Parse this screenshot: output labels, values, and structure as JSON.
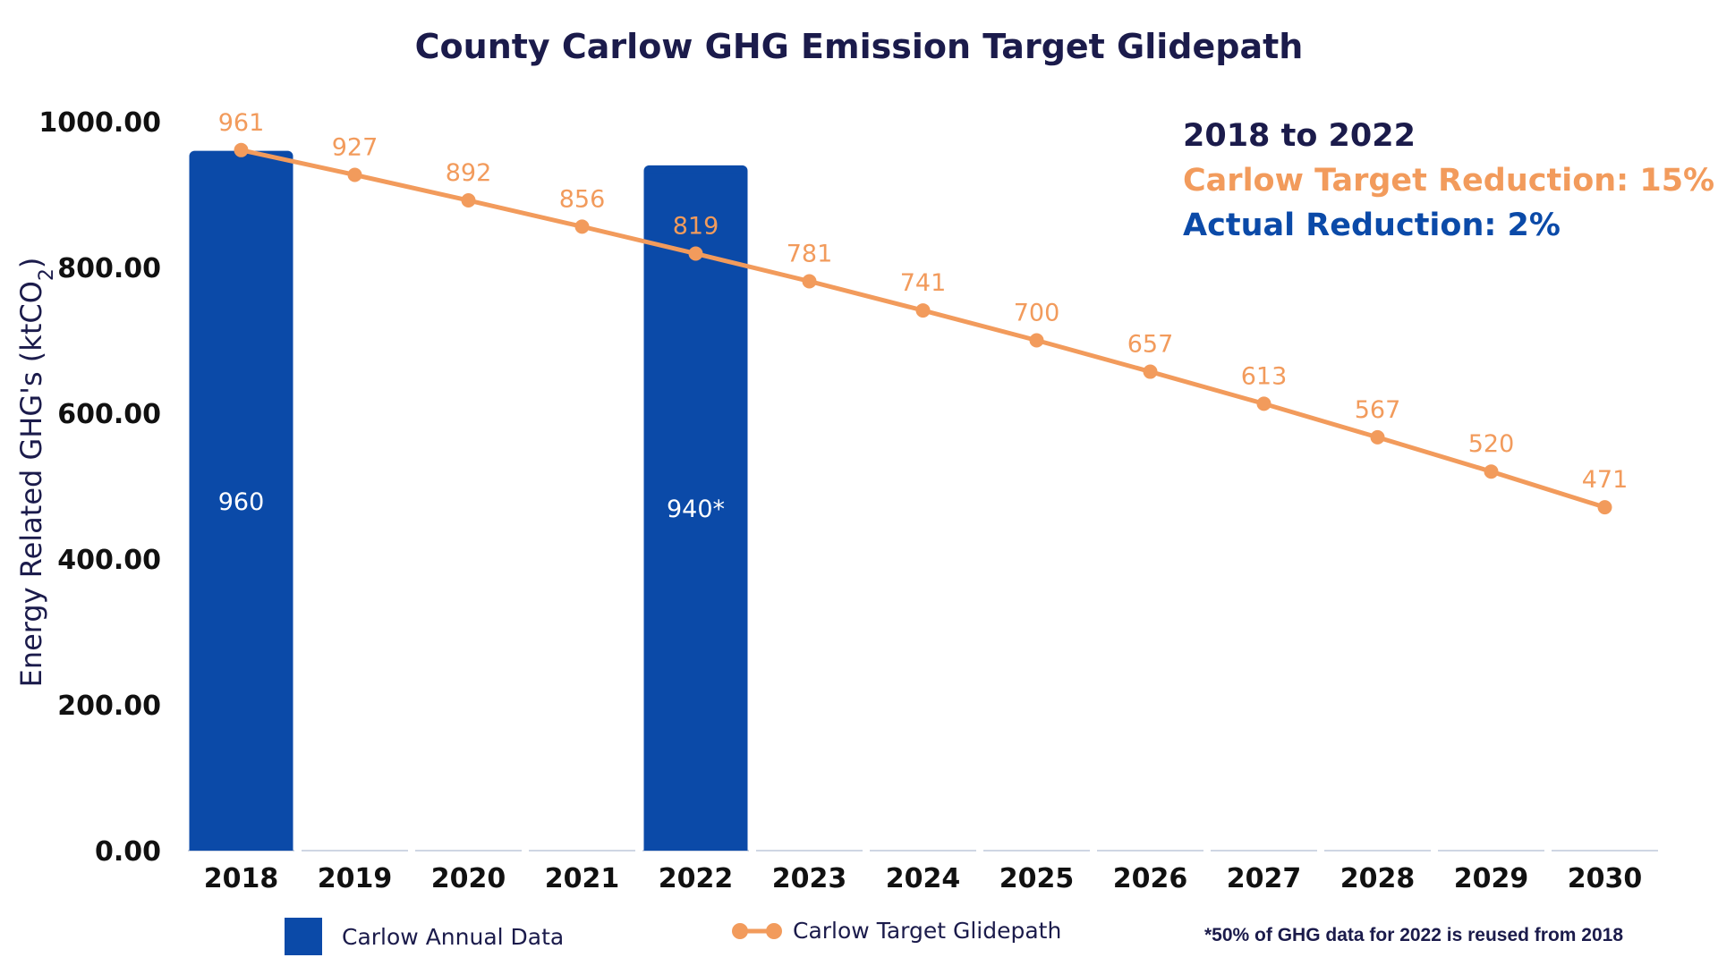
{
  "chart_data": {
    "type": "bar",
    "title": "County Carlow GHG Emission Target Glidepath",
    "xlabel": "",
    "ylabel": "Energy Related GHG's (ktCO2)",
    "ylim": [
      0,
      1000
    ],
    "y_ticks": [
      "0.00",
      "200.00",
      "400.00",
      "600.00",
      "800.00",
      "1000.00"
    ],
    "categories": [
      "2018",
      "2019",
      "2020",
      "2021",
      "2022",
      "2023",
      "2024",
      "2025",
      "2026",
      "2027",
      "2028",
      "2029",
      "2030"
    ],
    "series": [
      {
        "name": "Carlow Annual Data",
        "type": "bar",
        "color": "#0b4aa8",
        "values": [
          960,
          null,
          null,
          null,
          940,
          null,
          null,
          null,
          null,
          null,
          null,
          null,
          null
        ],
        "labels": [
          "960",
          "",
          "",
          "",
          "940*",
          "",
          "",
          "",
          "",
          "",
          "",
          "",
          ""
        ]
      },
      {
        "name": "Carlow Target Glidepath",
        "type": "line",
        "color": "#f29b5c",
        "values": [
          961,
          927,
          892,
          856,
          819,
          781,
          741,
          700,
          657,
          613,
          567,
          520,
          471
        ]
      }
    ],
    "grid": false,
    "legend_position": "bottom"
  },
  "info": {
    "heading": "2018 to 2022",
    "target_reduction": "Carlow Target Reduction: 15%",
    "actual_reduction": "Actual Reduction: 2%"
  },
  "footnote": "*50% of GHG data for 2022 is reused from 2018",
  "colors": {
    "bar": "#0b4aa8",
    "line": "#f29b5c",
    "text_dark": "#1b1b4b"
  }
}
